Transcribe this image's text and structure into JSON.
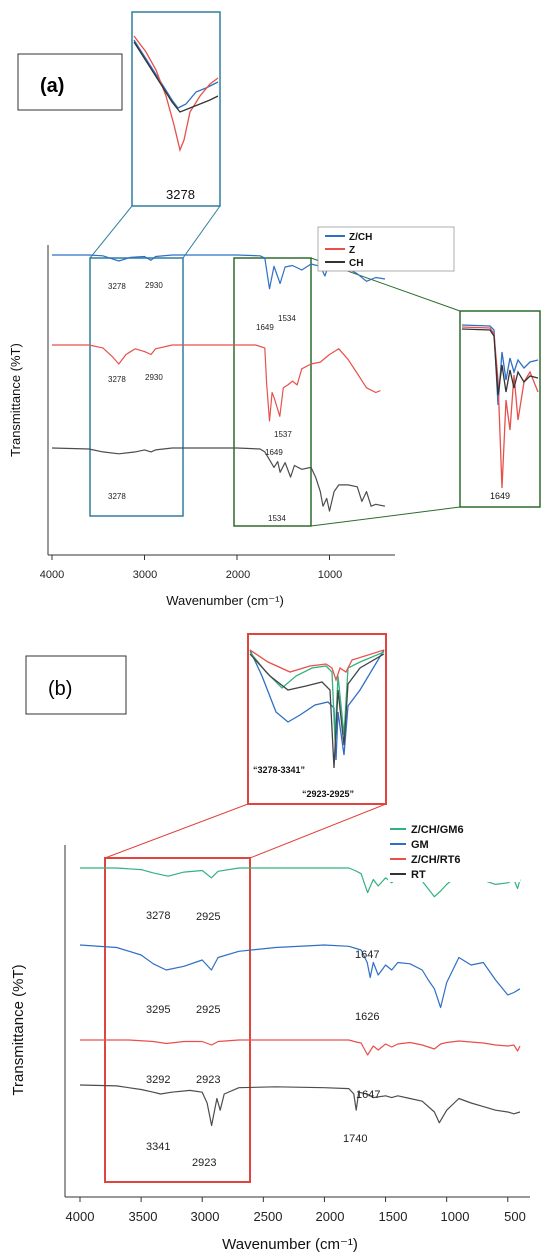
{
  "figure": {
    "panels": [
      {
        "panel_label": "(a)",
        "ylabel": "Transmittance (%T)",
        "xlabel": "Wavenumber (cm⁻¹)",
        "x_ticks": [
          "4000",
          "3000",
          "2000",
          "1000"
        ],
        "legend": [
          "Z/CH",
          "Z",
          "CH"
        ],
        "peak_labels": [
          "3278",
          "2930",
          "1649",
          "1534",
          "3278",
          "2930",
          "1537",
          "1649",
          "3278",
          "1534"
        ],
        "inset_labels": [
          "3278",
          "1649"
        ]
      },
      {
        "panel_label": "(b)",
        "ylabel": "Transmittance (%T)",
        "xlabel": "Wavenumber (cm⁻¹)",
        "x_ticks": [
          "4000",
          "3500",
          "3000",
          "2500",
          "2000",
          "1500",
          "1000",
          "500"
        ],
        "legend": [
          "Z/CH/GM6",
          "GM",
          "Z/CH/RT6",
          "RT"
        ],
        "peak_labels": [
          "3278",
          "2925",
          "1647",
          "3295",
          "2925",
          "1626",
          "3292",
          "2923",
          "1647",
          "3341",
          "2923",
          "1740"
        ],
        "inset_labels": [
          "“3278-3341”",
          "“2923-2925”"
        ]
      }
    ]
  },
  "chart_data": [
    {
      "type": "line",
      "xlabel": "Wavenumber (cm⁻¹)",
      "ylabel": "Transmittance (%T)",
      "xlim": [
        4000,
        400
      ],
      "x_direction": "reversed",
      "yticks": "none",
      "legend_placement": "top-right",
      "series": [
        {
          "name": "Z/CH",
          "color": "#2f6fc4",
          "x": [
            4000,
            3600,
            3450,
            3278,
            3150,
            3000,
            2930,
            2880,
            2700,
            2200,
            2000,
            1750,
            1700,
            1649,
            1600,
            1534,
            1480,
            1400,
            1300,
            1200,
            1100,
            1050,
            1000,
            900,
            800,
            700,
            600,
            500,
            400
          ],
          "y": [
            1.0,
            1.0,
            0.99,
            0.92,
            0.97,
            0.98,
            0.93,
            0.98,
            1.0,
            1.0,
            1.0,
            0.99,
            0.96,
            0.55,
            0.85,
            0.62,
            0.84,
            0.86,
            0.8,
            0.88,
            0.85,
            0.72,
            0.9,
            0.92,
            0.82,
            0.75,
            0.65,
            0.7,
            0.68
          ]
        },
        {
          "name": "Z",
          "color": "#e8504c",
          "x": [
            4000,
            3600,
            3450,
            3350,
            3278,
            3200,
            3100,
            3000,
            2930,
            2880,
            2700,
            2400,
            2200,
            2000,
            1800,
            1700,
            1680,
            1649,
            1620,
            1600,
            1537,
            1500,
            1450,
            1400,
            1350,
            1300,
            1200,
            1100,
            1000,
            900,
            800,
            700,
            600,
            500,
            450
          ],
          "y": [
            1.0,
            1.0,
            0.97,
            0.88,
            0.8,
            0.9,
            0.96,
            0.93,
            0.9,
            0.96,
            1.0,
            1.0,
            1.0,
            1.0,
            1.0,
            0.97,
            0.6,
            0.2,
            0.5,
            0.45,
            0.25,
            0.55,
            0.58,
            0.62,
            0.58,
            0.75,
            0.8,
            0.82,
            0.9,
            0.96,
            0.85,
            0.7,
            0.55,
            0.5,
            0.52
          ]
        },
        {
          "name": "CH",
          "color": "#4d4d4d",
          "x": [
            4000,
            3600,
            3450,
            3278,
            3100,
            3000,
            2930,
            2880,
            2700,
            2400,
            2200,
            2000,
            1750,
            1700,
            1650,
            1600,
            1560,
            1534,
            1480,
            1420,
            1380,
            1300,
            1200,
            1150,
            1100,
            1070,
            1030,
            1000,
            950,
            900,
            800,
            700,
            650,
            600,
            550,
            500,
            400
          ],
          "y": [
            1.0,
            0.99,
            0.96,
            0.94,
            0.96,
            0.98,
            0.96,
            0.98,
            1.0,
            1.0,
            1.0,
            1.0,
            0.99,
            0.96,
            0.88,
            0.8,
            0.86,
            0.75,
            0.85,
            0.7,
            0.82,
            0.78,
            0.8,
            0.7,
            0.55,
            0.4,
            0.48,
            0.35,
            0.55,
            0.62,
            0.62,
            0.6,
            0.45,
            0.55,
            0.4,
            0.42,
            0.4
          ]
        }
      ]
    },
    {
      "type": "line",
      "xlabel": "Wavenumber (cm⁻¹)",
      "ylabel": "Transmittance (%T)",
      "xlim": [
        4000,
        400
      ],
      "x_direction": "reversed",
      "xticks": [
        4000,
        3500,
        3000,
        2500,
        2000,
        1500,
        1000,
        500
      ],
      "yticks": "none",
      "legend_placement": "top-right",
      "series": [
        {
          "name": "Z/CH/GM6",
          "color": "#33b27f",
          "x": [
            4000,
            3700,
            3500,
            3400,
            3278,
            3150,
            3000,
            2925,
            2870,
            2700,
            2400,
            2000,
            1800,
            1750,
            1700,
            1647,
            1600,
            1560,
            1500,
            1450,
            1400,
            1300,
            1200,
            1100,
            1050,
            1000,
            900,
            800,
            700,
            600,
            500,
            450,
            420,
            400
          ],
          "y": [
            1.0,
            1.0,
            0.98,
            0.94,
            0.9,
            0.95,
            0.97,
            0.88,
            0.96,
            1.0,
            1.0,
            1.0,
            1.0,
            0.97,
            0.93,
            0.7,
            0.86,
            0.78,
            0.88,
            0.82,
            0.9,
            0.88,
            0.84,
            0.65,
            0.72,
            0.8,
            0.92,
            0.9,
            0.85,
            0.8,
            0.82,
            0.86,
            0.75,
            0.86
          ]
        },
        {
          "name": "GM",
          "color": "#2f6fc4",
          "x": [
            4000,
            3700,
            3500,
            3400,
            3295,
            3150,
            3000,
            2925,
            2870,
            2700,
            2400,
            2000,
            1800,
            1700,
            1650,
            1626,
            1600,
            1560,
            1500,
            1450,
            1400,
            1300,
            1200,
            1150,
            1100,
            1050,
            1000,
            900,
            800,
            700,
            600,
            500,
            450,
            400
          ],
          "y": [
            1.0,
            0.98,
            0.92,
            0.85,
            0.8,
            0.83,
            0.88,
            0.8,
            0.9,
            0.95,
            0.98,
            1.0,
            0.99,
            0.96,
            0.86,
            0.74,
            0.86,
            0.76,
            0.84,
            0.8,
            0.86,
            0.85,
            0.8,
            0.72,
            0.65,
            0.5,
            0.7,
            0.9,
            0.84,
            0.86,
            0.72,
            0.6,
            0.62,
            0.65
          ]
        },
        {
          "name": "Z/CH/RT6",
          "color": "#e8504c",
          "x": [
            4000,
            3600,
            3400,
            3292,
            3150,
            3000,
            2923,
            2870,
            2700,
            2400,
            2000,
            1800,
            1740,
            1700,
            1647,
            1600,
            1560,
            1500,
            1450,
            1400,
            1300,
            1200,
            1100,
            1050,
            1000,
            900,
            800,
            700,
            600,
            500,
            450,
            420,
            400
          ],
          "y": [
            1.0,
            1.0,
            0.97,
            0.93,
            0.97,
            0.97,
            0.9,
            0.97,
            1.0,
            1.0,
            1.0,
            1.0,
            0.96,
            0.94,
            0.7,
            0.88,
            0.8,
            0.92,
            0.86,
            0.92,
            0.95,
            0.9,
            0.82,
            0.92,
            0.95,
            0.98,
            0.96,
            0.94,
            0.9,
            0.88,
            0.9,
            0.78,
            0.88
          ]
        },
        {
          "name": "RT",
          "color": "#4d4d4d",
          "x": [
            4000,
            3700,
            3500,
            3400,
            3341,
            3250,
            3100,
            3000,
            2960,
            2923,
            2880,
            2853,
            2820,
            2700,
            2400,
            2000,
            1800,
            1760,
            1740,
            1720,
            1650,
            1600,
            1500,
            1450,
            1400,
            1300,
            1200,
            1100,
            1060,
            1000,
            900,
            800,
            700,
            600,
            500,
            450,
            400
          ],
          "y": [
            1.0,
            0.99,
            0.95,
            0.92,
            0.9,
            0.92,
            0.94,
            0.92,
            0.8,
            0.55,
            0.85,
            0.72,
            0.9,
            0.97,
            0.98,
            0.97,
            0.96,
            0.9,
            0.72,
            0.92,
            0.9,
            0.86,
            0.88,
            0.86,
            0.88,
            0.85,
            0.82,
            0.7,
            0.58,
            0.72,
            0.85,
            0.8,
            0.76,
            0.72,
            0.7,
            0.68,
            0.7
          ]
        }
      ]
    }
  ]
}
